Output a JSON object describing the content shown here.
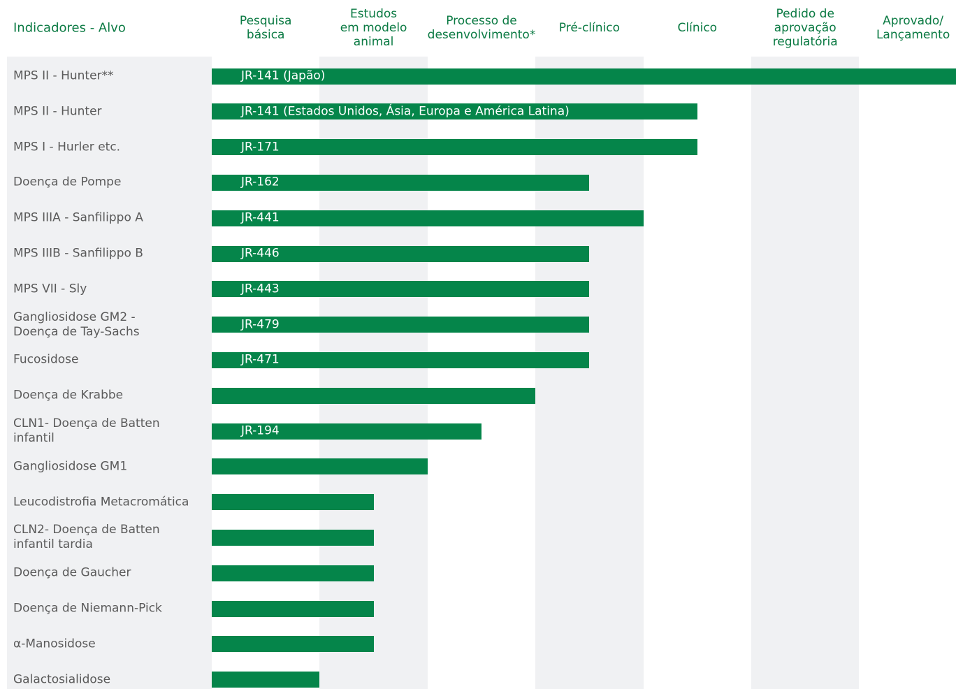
{
  "chart_data": {
    "type": "bar",
    "orientation": "horizontal",
    "header_label": "Indicadores - Alvo",
    "stages": [
      "Pesquisa\nbásica",
      "Estudos\nem modelo\nanimal",
      "Processo de\ndesenvolvimento*",
      "Pré-clínico",
      "Clínico",
      "Pedido de\naprovação\nregulatória",
      "Aprovado/\nLançamento"
    ],
    "categories": [
      "MPS II - Hunter**",
      "MPS II - Hunter",
      "MPS I - Hurler etc.",
      "Doença de Pompe",
      "MPS IIIA - Sanfilippo A",
      "MPS IIIB - Sanfilippo B",
      "MPS VII - Sly",
      "Gangliosidose GM2 -\nDoença de Tay-Sachs",
      "Fucosidose",
      "Doença de Krabbe",
      "CLN1- Doença de Batten\ninfantil",
      "Gangliosidose GM1",
      "Leucodistrofia Metacromática",
      "CLN2- Doença de Batten\ninfantil tardia",
      "Doença de Gaucher",
      "Doença de Niemann-Pick",
      "α-Manosidose",
      "Galactosialidose"
    ],
    "values": [
      7,
      4.5,
      4.5,
      3.5,
      4,
      3.5,
      3.5,
      3.5,
      3.5,
      3,
      2.5,
      2,
      1.5,
      1.5,
      1.5,
      1.5,
      1.5,
      1
    ],
    "bar_labels": [
      "JR-141 (Japão)",
      "JR-141 (Estados Unidos, Ásia, Europa e América Latina)",
      "JR-171",
      "JR-162",
      "JR-441",
      "JR-446",
      "JR-443",
      "JR-479",
      "JR-471",
      null,
      "JR-194",
      null,
      null,
      null,
      null,
      null,
      null,
      null
    ],
    "xlim": [
      0,
      7
    ],
    "color": "#05854a"
  }
}
